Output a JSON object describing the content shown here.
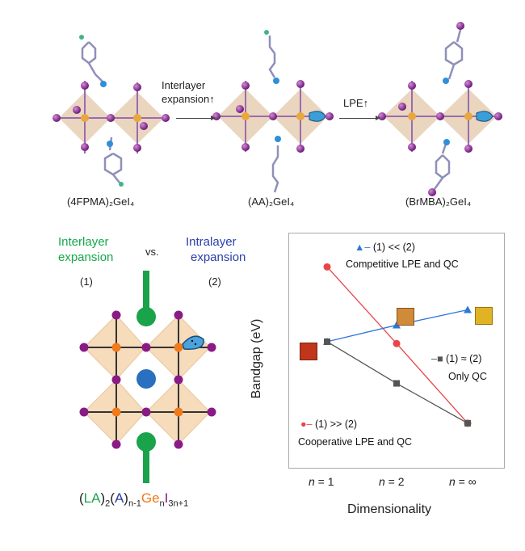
{
  "top": {
    "molecules": [
      {
        "label": "(4FPMA)₂GeI₄"
      },
      {
        "label": "(AA)₂GeI₄"
      },
      {
        "label": "(BrMBA)₂GeI₄"
      }
    ],
    "arrow1": {
      "line1": "Interlayer",
      "line2": "expansion↑"
    },
    "arrow2": {
      "line1": "LPE↑"
    }
  },
  "left": {
    "inter_line1": "Interlayer",
    "inter_line2": "expansion",
    "inter_num": "(1)",
    "vs": "vs.",
    "intra_line1": "Intralayer",
    "intra_line2": "expansion",
    "intra_num": "(2)",
    "formula": {
      "la": "LA",
      "la_sub": "2",
      "a": "A",
      "a_sub": "n-1",
      "ge": "Ge",
      "ge_sub": "n",
      "i": "I",
      "i_sub": "3n+1",
      "open": "(",
      "close": ")"
    }
  },
  "chart_data": {
    "type": "line",
    "xlabel": "Dimensionality",
    "ylabel": "Bandgap (eV)",
    "categories": [
      "n = 1",
      "n = 2",
      "n = ∞"
    ],
    "series": [
      {
        "marker": "circle",
        "color": "#e8454a",
        "values": [
          3.0,
          1.75,
          0.45
        ],
        "legend": "(1) >> (2)",
        "description": "Cooperative LPE and QC"
      },
      {
        "marker": "triangle",
        "color": "#2e78d8",
        "values": [
          1.78,
          2.05,
          2.3
        ],
        "legend": "(1) << (2)",
        "description": "Competitive LPE and QC"
      },
      {
        "marker": "square",
        "color": "#555555",
        "values": [
          1.78,
          1.1,
          0.45
        ],
        "legend": "(1) ≈ (2)",
        "description": "Only QC"
      }
    ],
    "ylim": [
      0.0,
      3.4
    ],
    "colors": {
      "red": "#e8454a",
      "blue": "#2e78d8",
      "gray": "#555555"
    }
  }
}
